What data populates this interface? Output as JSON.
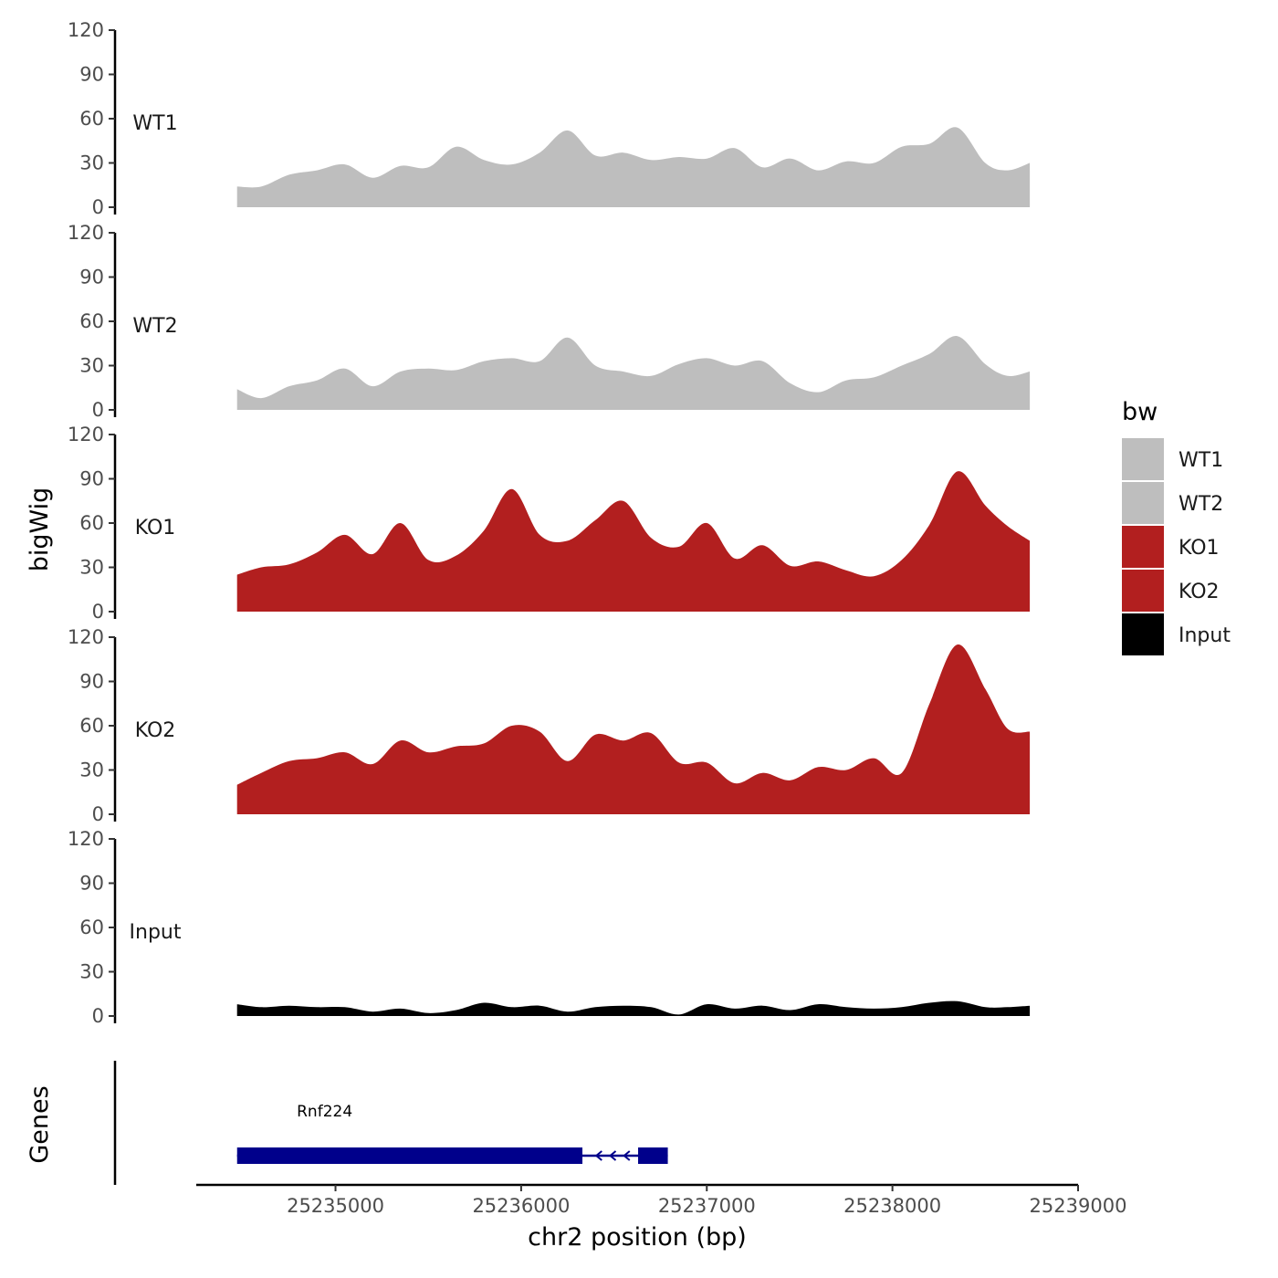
{
  "chart_data": {
    "type": "area",
    "ylabel": "bigWig",
    "xlabel": "chr2 position (bp)",
    "xlim": [
      25234250,
      25239000
    ],
    "xticks": [
      "25235000",
      "25236000",
      "25237000",
      "25238000",
      "25239000"
    ],
    "ylim": [
      0,
      120
    ],
    "yticks": [
      "0",
      "30",
      "60",
      "90",
      "120"
    ],
    "grid": false,
    "legend": {
      "title": "bw",
      "placement": "right",
      "items": [
        {
          "label": "WT1",
          "color": "#bebebe"
        },
        {
          "label": "WT2",
          "color": "#bebebe"
        },
        {
          "label": "KO1",
          "color": "#b21f1f"
        },
        {
          "label": "KO2",
          "color": "#b21f1f"
        },
        {
          "label": "Input",
          "color": "#000000"
        }
      ]
    },
    "x": [
      25234470,
      25234600,
      25234750,
      25234900,
      25235050,
      25235200,
      25235350,
      25235500,
      25235650,
      25235800,
      25235950,
      25236100,
      25236250,
      25236400,
      25236550,
      25236700,
      25236850,
      25237000,
      25237150,
      25237300,
      25237450,
      25237600,
      25237750,
      25237900,
      25238050,
      25238200,
      25238350,
      25238500,
      25238620,
      25238740
    ],
    "series": [
      {
        "name": "WT1",
        "color": "#bebebe",
        "values": [
          14,
          14,
          22,
          25,
          29,
          20,
          28,
          27,
          41,
          32,
          29,
          37,
          52,
          35,
          37,
          32,
          34,
          33,
          40,
          27,
          33,
          25,
          31,
          30,
          41,
          43,
          54,
          30,
          25,
          30
        ]
      },
      {
        "name": "WT2",
        "color": "#bebebe",
        "values": [
          14,
          8,
          16,
          20,
          28,
          16,
          26,
          28,
          27,
          33,
          35,
          33,
          49,
          30,
          26,
          23,
          31,
          35,
          30,
          33,
          18,
          12,
          20,
          22,
          30,
          38,
          50,
          31,
          23,
          26
        ]
      },
      {
        "name": "KO1",
        "color": "#b21f1f",
        "values": [
          25,
          30,
          32,
          40,
          52,
          39,
          60,
          35,
          38,
          55,
          83,
          52,
          48,
          62,
          75,
          50,
          44,
          60,
          36,
          45,
          31,
          34,
          28,
          24,
          35,
          59,
          95,
          72,
          58,
          48
        ]
      },
      {
        "name": "KO2",
        "color": "#b21f1f",
        "values": [
          20,
          28,
          36,
          38,
          42,
          34,
          50,
          42,
          46,
          48,
          60,
          56,
          36,
          54,
          50,
          55,
          35,
          35,
          21,
          28,
          23,
          32,
          30,
          38,
          28,
          75,
          115,
          85,
          58,
          56
        ]
      },
      {
        "name": "Input",
        "color": "#000000",
        "values": [
          8,
          6,
          7,
          6,
          6,
          3,
          5,
          2,
          4,
          9,
          6,
          7,
          3,
          6,
          7,
          6,
          1,
          8,
          5,
          7,
          4,
          8,
          6,
          5,
          6,
          9,
          10,
          6,
          6,
          7
        ]
      }
    ],
    "genes": {
      "track_label": "Genes",
      "items": [
        {
          "name": "Rnf224",
          "strand": "-",
          "start": 25234470,
          "end": 25236790,
          "exons": [
            [
              25234470,
              25236330
            ],
            [
              25236630,
              25236790
            ]
          ]
        }
      ]
    }
  }
}
